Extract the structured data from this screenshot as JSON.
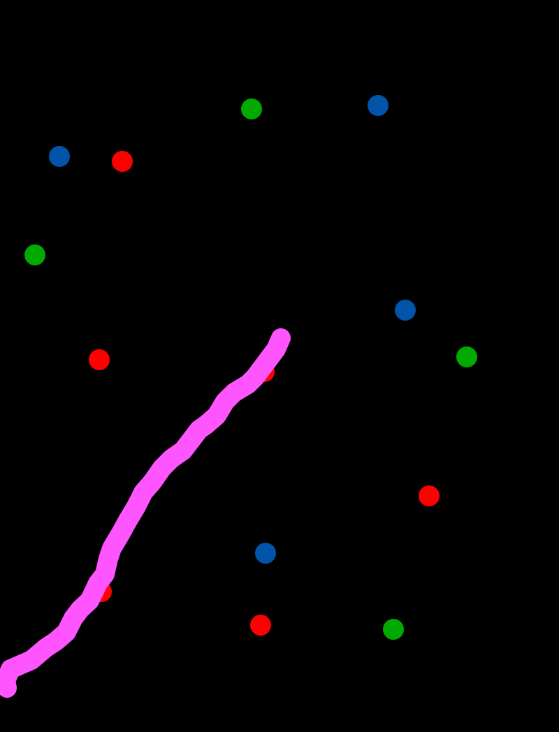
{
  "canvas": {
    "background": "#000000",
    "dot_colors": {
      "blue": "#0055aa",
      "green": "#00aa00",
      "red": "#ff0000"
    },
    "stroke_color": "#ff55ff"
  }
}
